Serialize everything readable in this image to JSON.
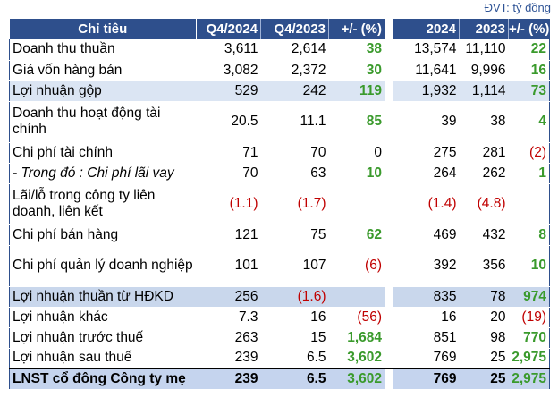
{
  "unit_note": "ĐVT: tỷ đồng",
  "headers": [
    "Chỉ tiêu",
    "Q4/2024",
    "Q4/2023",
    "+/- (%)",
    "2024",
    "2023",
    "+/- (%)"
  ],
  "rows": [
    {
      "label": "Doanh thu thuần",
      "q24": "3,611",
      "q23": "2,614",
      "qchg": "38",
      "qtone": "pos",
      "y24": "13,574",
      "y23": "11,110",
      "ychg": "22",
      "ytone": "pos",
      "style": "",
      "h": 1
    },
    {
      "label": "Giá vốn hàng bán",
      "q24": "3,082",
      "q23": "2,372",
      "qchg": "30",
      "qtone": "pos",
      "y24": "11,641",
      "y23": "9,996",
      "ychg": "16",
      "ytone": "pos",
      "style": "",
      "h": 1
    },
    {
      "label": "Lợi nhuận gộp",
      "q24": "529",
      "q23": "242",
      "qchg": "119",
      "qtone": "pos",
      "y24": "1,932",
      "y23": "1,114",
      "ychg": "73",
      "ytone": "pos",
      "style": "shade",
      "h": 1
    },
    {
      "label": "Doanh thu hoạt động tài chính",
      "q24": "20.5",
      "q23": "11.1",
      "qchg": "85",
      "qtone": "pos",
      "y24": "39",
      "y23": "38",
      "ychg": "4",
      "ytone": "pos",
      "style": "",
      "h": 2
    },
    {
      "label": "Chi phí tài chính",
      "q24": "71",
      "q23": "70",
      "qchg": "0",
      "qtone": "neu",
      "y24": "275",
      "y23": "281",
      "ychg": "(2)",
      "ytone": "neg",
      "style": "",
      "h": 1
    },
    {
      "label": "- Trong đó : Chi phí lãi vay",
      "q24": "70",
      "q23": "63",
      "qchg": "10",
      "qtone": "pos",
      "y24": "264",
      "y23": "262",
      "ychg": "1",
      "ytone": "pos",
      "style": "italic",
      "h": 1
    },
    {
      "label": "Lãi/lỗ trong công ty liên doanh, liên kết",
      "q24": "(1.1)",
      "q23": "(1.7)",
      "qchg": "",
      "qtone": "neu",
      "y24": "(1.4)",
      "y23": "(4.8)",
      "ychg": "",
      "ytone": "neu",
      "style": "negvals",
      "h": 2
    },
    {
      "label": "Chi phí bán hàng",
      "q24": "121",
      "q23": "75",
      "qchg": "62",
      "qtone": "pos",
      "y24": "469",
      "y23": "432",
      "ychg": "8",
      "ytone": "pos",
      "style": "",
      "h": 1
    },
    {
      "label": "Chi phí quản lý doanh nghiệp",
      "q24": "101",
      "q23": "107",
      "qchg": "(6)",
      "qtone": "neg",
      "y24": "392",
      "y23": "356",
      "ychg": "10",
      "ytone": "pos",
      "style": "",
      "h": 2
    },
    {
      "label": "Lợi nhuận thuần từ HĐKD",
      "q24": "256",
      "q23": "(1.6)",
      "qchg": "",
      "qtone": "neu",
      "y24": "835",
      "y23": "78",
      "ychg": "974",
      "ytone": "pos",
      "style": "shade2",
      "q23tone": "neg",
      "h": 1
    },
    {
      "label": "Lợi nhuận khác",
      "q24": "7.3",
      "q23": "16",
      "qchg": "(56)",
      "qtone": "neg",
      "y24": "16",
      "y23": "20",
      "ychg": "(19)",
      "ytone": "neg",
      "style": "",
      "h": 1
    },
    {
      "label": "Lợi nhuận trước thuế",
      "q24": "263",
      "q23": "15",
      "qchg": "1,684",
      "qtone": "pos",
      "y24": "851",
      "y23": "98",
      "ychg": "770",
      "ytone": "pos",
      "style": "",
      "h": 1
    },
    {
      "label": "Lợi nhuận sau thuế",
      "q24": "239",
      "q23": "6.5",
      "qchg": "3,602",
      "qtone": "pos",
      "y24": "769",
      "y23": "25",
      "ychg": "2,975",
      "ytone": "pos",
      "style": "",
      "h": 1
    },
    {
      "label": "LNST cổ đông Công ty mẹ",
      "q24": "239",
      "q23": "6.5",
      "qchg": "3,602",
      "qtone": "pos",
      "y24": "769",
      "y23": "25",
      "ychg": "2,975",
      "ytone": "pos",
      "style": "total",
      "h": 1
    }
  ],
  "colors": {
    "header_bg": "#2e4f8c",
    "shade_bg": "#dbe5f3",
    "positive": "#3a9a2c",
    "negative": "#c00000"
  }
}
